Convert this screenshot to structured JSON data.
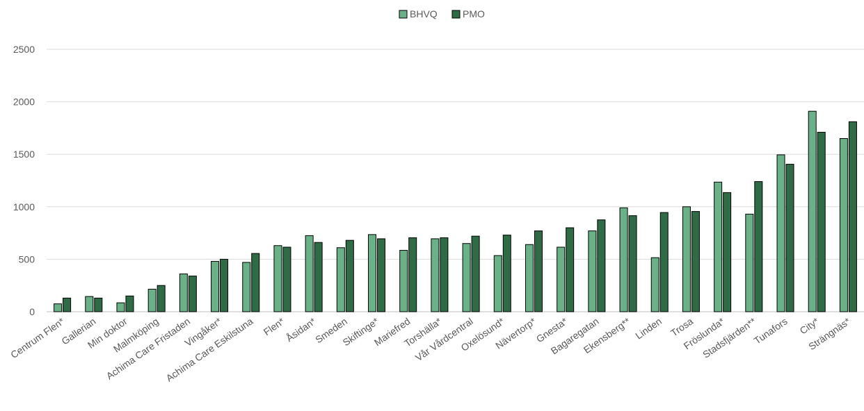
{
  "chart_data": {
    "type": "bar",
    "title": "",
    "xlabel": "",
    "ylabel": "",
    "ylim": [
      0,
      2500
    ],
    "yticks": [
      0,
      500,
      1000,
      1500,
      2000,
      2500
    ],
    "grid": true,
    "legend_position": "top-center",
    "categories": [
      "Centrum Flen*",
      "Gallerian",
      "Min doktor",
      "Malmköping",
      "Achima Care Fristaden",
      "Vingåker*",
      "Achima Care Eskilstuna",
      "Flen*",
      "Åsidan*",
      "Smeden",
      "Skiftinge*",
      "Mariefred",
      "Torshälla*",
      "Vår Vårdcentral",
      "Oxelösund*",
      "Nävertorp*",
      "Gnesta*",
      "Bagaregatan",
      "Ekensberg**",
      "Linden",
      "Trosa",
      "Fröslunda*",
      "Stadsfjärden**",
      "Tunafors",
      "City*",
      "Strängnäs*"
    ],
    "series": [
      {
        "name": "BHVQ",
        "color": "#6ab187",
        "values": [
          75,
          145,
          85,
          215,
          360,
          480,
          470,
          630,
          725,
          610,
          735,
          585,
          695,
          650,
          535,
          640,
          615,
          770,
          990,
          515,
          1000,
          1235,
          930,
          1495,
          1910,
          1650
        ]
      },
      {
        "name": "PMO",
        "color": "#2f6b45",
        "values": [
          130,
          130,
          150,
          250,
          340,
          500,
          555,
          615,
          660,
          680,
          695,
          705,
          705,
          720,
          730,
          770,
          800,
          875,
          915,
          945,
          955,
          1135,
          1240,
          1405,
          1710,
          1810
        ]
      }
    ]
  }
}
